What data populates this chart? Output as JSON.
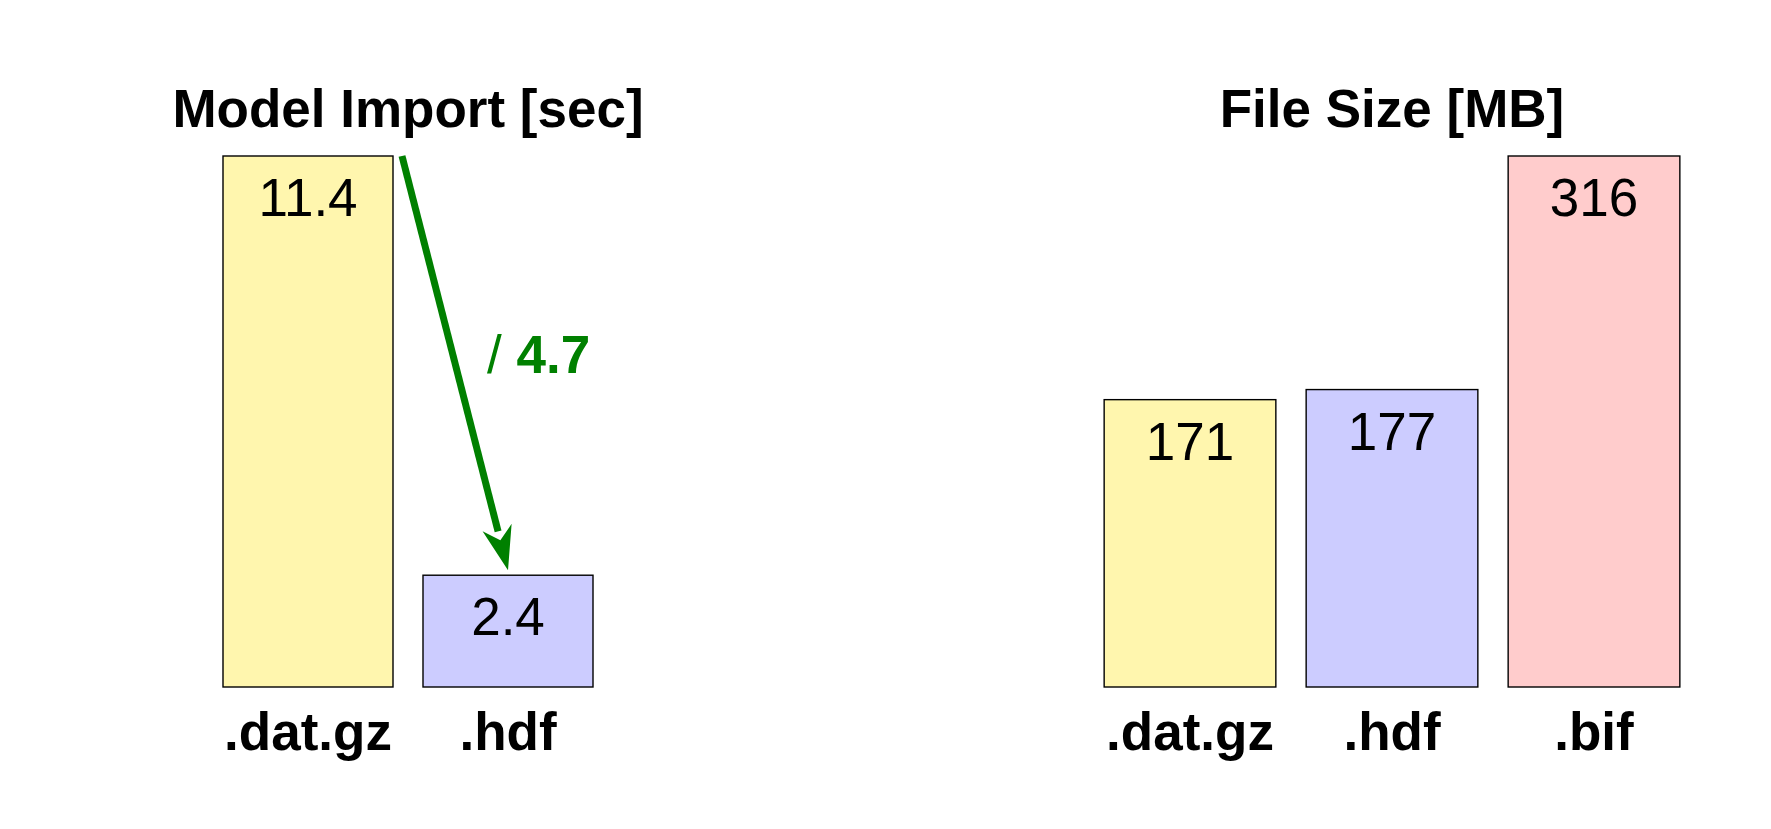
{
  "chart_data": [
    {
      "type": "bar",
      "title": "Model Import [sec]",
      "categories": [
        ".dat.gz",
        ".hdf"
      ],
      "values": [
        11.4,
        2.4
      ],
      "colors": [
        "#fff6ae",
        "#ccccff"
      ],
      "data_labels": true,
      "annotations": [
        "/ 4.7"
      ]
    },
    {
      "type": "bar",
      "title": "File Size [MB]",
      "categories": [
        ".dat.gz",
        ".hdf",
        ".bif"
      ],
      "values": [
        171,
        177,
        316
      ],
      "colors": [
        "#fff6ae",
        "#ccccff",
        "#ffcccc"
      ],
      "data_labels": true
    }
  ]
}
